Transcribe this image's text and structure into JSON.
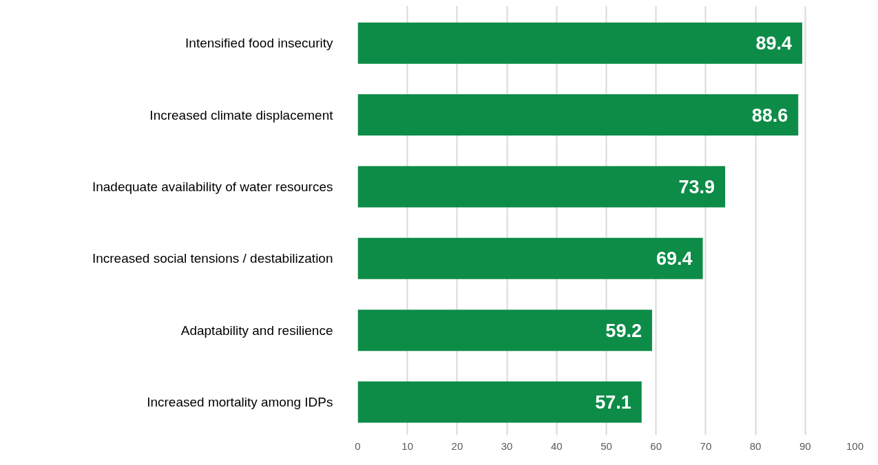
{
  "chart_data": {
    "type": "bar",
    "orientation": "horizontal",
    "categories": [
      "Intensified food insecurity",
      "Increased climate displacement",
      "Inadequate availability of water resources",
      "Increased social tensions / destabilization",
      "Adaptability and resilience",
      "Increased mortality among IDPs"
    ],
    "values": [
      89.4,
      88.6,
      73.9,
      69.4,
      59.2,
      57.1
    ],
    "color": "#0d8c48",
    "xlim": [
      0,
      100
    ],
    "xticks": [
      0,
      10,
      20,
      30,
      40,
      50,
      60,
      70,
      80,
      90,
      100
    ],
    "grid": "x",
    "data_labels": true
  }
}
